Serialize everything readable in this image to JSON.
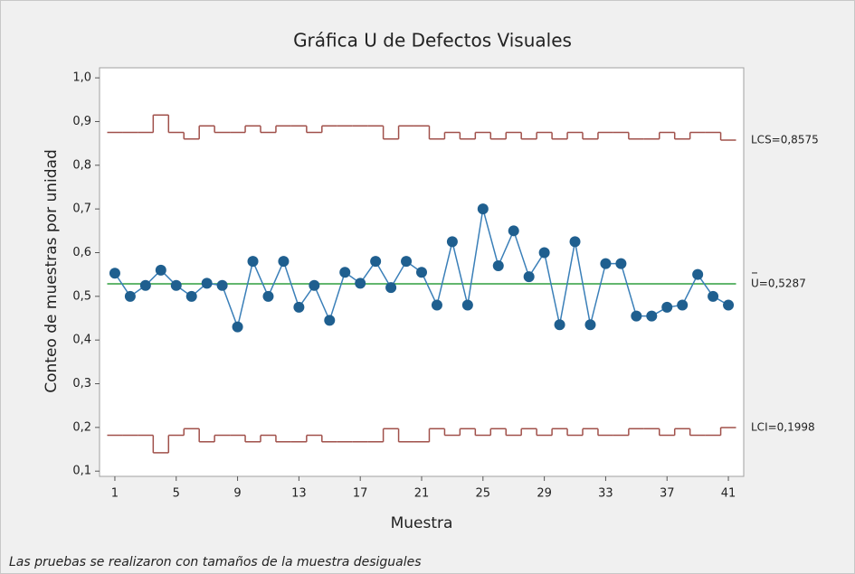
{
  "chart_data": {
    "type": "line",
    "title": "Gráfica U de Defectos Visuales",
    "xlabel": "Muestra",
    "ylabel": "Conteo de muestras por unidad",
    "note": "Las pruebas se realizaron con tamaños de la muestra desiguales",
    "x": [
      1,
      2,
      3,
      4,
      5,
      6,
      7,
      8,
      9,
      10,
      11,
      12,
      13,
      14,
      15,
      16,
      17,
      18,
      19,
      20,
      21,
      22,
      23,
      24,
      25,
      26,
      27,
      28,
      29,
      30,
      31,
      32,
      33,
      34,
      35,
      36,
      37,
      38,
      39,
      40,
      41
    ],
    "values": [
      0.553,
      0.5,
      0.525,
      0.56,
      0.525,
      0.5,
      0.53,
      0.525,
      0.43,
      0.58,
      0.5,
      0.58,
      0.475,
      0.525,
      0.445,
      0.555,
      0.53,
      0.58,
      0.52,
      0.58,
      0.555,
      0.48,
      0.625,
      0.48,
      0.7,
      0.57,
      0.65,
      0.545,
      0.6,
      0.435,
      0.625,
      0.435,
      0.575,
      0.575,
      0.455,
      0.455,
      0.475,
      0.48,
      0.55,
      0.5,
      0.48
    ],
    "color": "#1f5f8f",
    "line_color": "#3a7fb8",
    "ucl": {
      "label": "LCS=0,8575",
      "color": "#a0504a",
      "values": [
        0.875,
        0.875,
        0.875,
        0.915,
        0.875,
        0.86,
        0.89,
        0.875,
        0.875,
        0.89,
        0.875,
        0.89,
        0.89,
        0.875,
        0.89,
        0.89,
        0.89,
        0.89,
        0.86,
        0.89,
        0.89,
        0.86,
        0.875,
        0.86,
        0.875,
        0.86,
        0.875,
        0.86,
        0.875,
        0.86,
        0.875,
        0.86,
        0.875,
        0.875,
        0.86,
        0.86,
        0.875,
        0.86,
        0.875,
        0.875,
        0.8575
      ]
    },
    "center": {
      "label": "U=0,5287",
      "value": 0.5287,
      "color": "#2e9e3e"
    },
    "lcl": {
      "label": "LCI=0,1998",
      "color": "#a0504a",
      "values": [
        0.182,
        0.182,
        0.182,
        0.142,
        0.182,
        0.197,
        0.167,
        0.182,
        0.182,
        0.167,
        0.182,
        0.167,
        0.167,
        0.182,
        0.167,
        0.167,
        0.167,
        0.167,
        0.197,
        0.167,
        0.167,
        0.197,
        0.182,
        0.197,
        0.182,
        0.197,
        0.182,
        0.197,
        0.182,
        0.197,
        0.182,
        0.197,
        0.182,
        0.182,
        0.197,
        0.197,
        0.182,
        0.197,
        0.182,
        0.182,
        0.1998
      ]
    },
    "xlim": [
      0,
      42
    ],
    "xticks": [
      1,
      5,
      9,
      13,
      17,
      21,
      25,
      29,
      33,
      37,
      41
    ],
    "ylim": [
      0.088,
      1.023
    ],
    "yticks": [
      {
        "value": 0.1,
        "label": "0,1"
      },
      {
        "value": 0.2,
        "label": "0,2"
      },
      {
        "value": 0.3,
        "label": "0,3"
      },
      {
        "value": 0.4,
        "label": "0,4"
      },
      {
        "value": 0.5,
        "label": "0,5"
      },
      {
        "value": 0.6,
        "label": "0,6"
      },
      {
        "value": 0.7,
        "label": "0,7"
      },
      {
        "value": 0.8,
        "label": "0,8"
      },
      {
        "value": 0.9,
        "label": "0,9"
      },
      {
        "value": 1.0,
        "label": "1,0"
      }
    ]
  }
}
